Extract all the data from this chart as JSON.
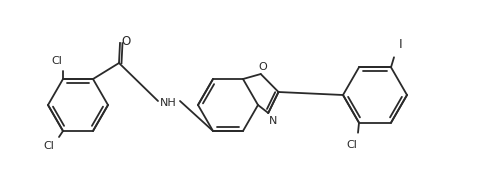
{
  "bg_color": "#ffffff",
  "line_color": "#2a2a2a",
  "line_width": 1.3,
  "text_color": "#2a2a2a",
  "font_size": 8.0,
  "figsize": [
    4.78,
    1.85
  ],
  "dpi": 100,
  "xlim": [
    0,
    478
  ],
  "ylim": [
    0,
    185
  ]
}
